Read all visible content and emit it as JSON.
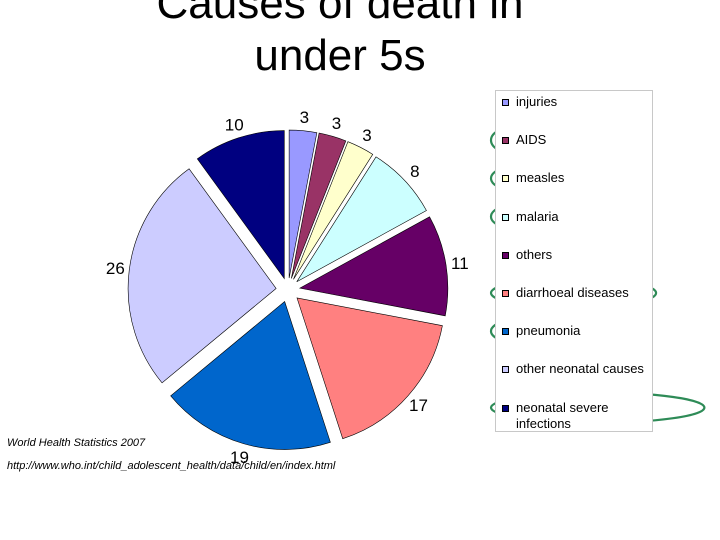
{
  "slide": {
    "title_line1": "Causes of death in",
    "title_line2": "under 5s",
    "source_line1": "World Health Statistics 2007",
    "source_line2": "http://www.who.int/child_adolescent_health/data/child/en/index.html"
  },
  "chart_data": {
    "type": "pie",
    "title": "",
    "start_angle_deg": 0,
    "exploded": true,
    "categories": [
      "injuries",
      "AIDS",
      "measles",
      "malaria",
      "others",
      "diarrhoeal diseases",
      "pneumonia",
      "other neonatal causes",
      "neonatal severe infections"
    ],
    "values": [
      3,
      3,
      3,
      8,
      11,
      17,
      19,
      26,
      10
    ],
    "colors": [
      "#9999ff",
      "#993366",
      "#ffffcc",
      "#ccffff",
      "#660066",
      "#ff8080",
      "#0066cc",
      "#ccccff",
      "#000080"
    ],
    "data_labels": [
      "3",
      "3",
      "3",
      "8",
      "11",
      "17",
      "19",
      "26",
      "10"
    ],
    "legend": {
      "position": "right",
      "items": [
        {
          "label": "injuries",
          "color": "#9999ff",
          "circled": false
        },
        {
          "label": "AIDS",
          "color": "#993366",
          "circled": true
        },
        {
          "label": "measles",
          "color": "#ffffcc",
          "circled": true
        },
        {
          "label": "malaria",
          "color": "#ccffff",
          "circled": true
        },
        {
          "label": "others",
          "color": "#660066",
          "circled": false
        },
        {
          "label": "diarrhoeal diseases",
          "color": "#ff8080",
          "circled": true
        },
        {
          "label": "pneumonia",
          "color": "#0066cc",
          "circled": true
        },
        {
          "label": "other neonatal causes",
          "color": "#ccccff",
          "circled": false
        },
        {
          "label": "neonatal severe infections",
          "color": "#000080",
          "circled": true
        }
      ]
    },
    "annotation_color": "#2e8b57"
  }
}
